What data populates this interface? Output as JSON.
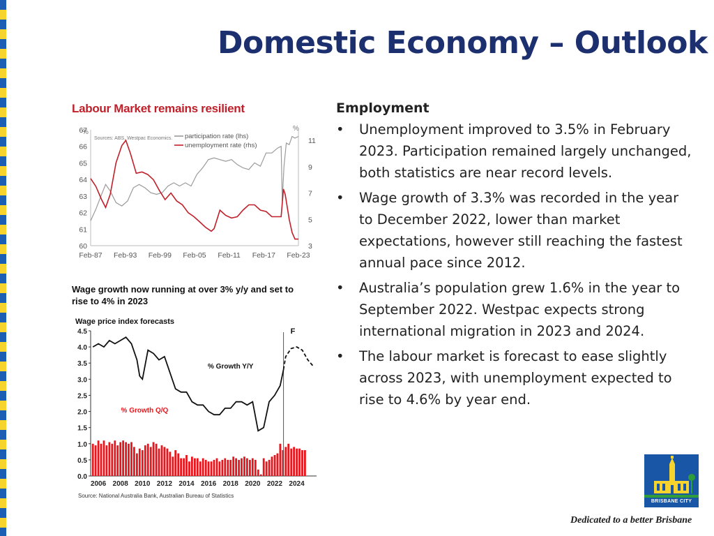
{
  "slide": {
    "title": "Domestic Economy – Outlook",
    "colors": {
      "title": "#1c2f6e",
      "stripe_blue": "#1a5fb4",
      "stripe_yellow": "#f6d32d",
      "chart_red": "#c0202a"
    }
  },
  "text_panel": {
    "heading": "Employment",
    "bullets": [
      {
        "text": "Unemployment improved to 3.5% in February 2023. Participation remained largely unchanged, both statistics are near record levels."
      },
      {
        "text": "Wage growth of 3.3% was recorded in the year to December 2022, lower than market expectations, however still reaching the fastest annual pace since 2012."
      },
      {
        "text": "Australia’s population grew 1.6% in the year to September 2022. Westpac expects strong international migration in 2023 and 2024."
      },
      {
        "text": "The labour market is forecast to ease slightly across 2023, with unemployment expected to rise to 4.6% by year end."
      }
    ],
    "bullet_char": "•"
  },
  "footer": {
    "logo_caption": "BRISBANE CITY",
    "tagline": "Dedicated to a better Brisbane",
    "logo_icon": "city-hall-icon"
  },
  "chart_data": [
    {
      "type": "line",
      "title": "Labour Market remains resilient",
      "source": "Sources: ABS, Westpac Economics.",
      "left_unit": "%",
      "right_unit": "%",
      "yticks_left": [
        "60",
        "61",
        "62",
        "63",
        "64",
        "65",
        "66",
        "67"
      ],
      "yticks_right": [
        "3",
        "5",
        "7",
        "9",
        "11"
      ],
      "ylim_left": [
        60,
        67
      ],
      "ylim_right": [
        3,
        11.8
      ],
      "x_ticks": [
        "Feb-87",
        "Feb-93",
        "Feb-99",
        "Feb-05",
        "Feb-11",
        "Feb-17",
        "Feb-23"
      ],
      "xlim": [
        1987.1,
        2023.1
      ],
      "x_tick_values": [
        1987.1,
        1993.1,
        1999.1,
        2005.1,
        2011.1,
        2017.1,
        2023.1
      ],
      "grid": false,
      "legend": "top",
      "series": [
        {
          "name": "participation rate (lhs)",
          "axis": "left",
          "color": "#9a9a9a",
          "x": [
            1987.1,
            1988,
            1989,
            1989.7,
            1990.5,
            1991.5,
            1992.5,
            1993.5,
            1994.5,
            1995.5,
            1996.5,
            1997.5,
            1998.5,
            1999.5,
            2000.5,
            2001.5,
            2002.5,
            2003.5,
            2004.5,
            2005.5,
            2006.5,
            2007.5,
            2008.5,
            2009.5,
            2010.5,
            2011.5,
            2012.5,
            2013.5,
            2014.5,
            2015.5,
            2016.5,
            2017.5,
            2018.5,
            2019.5,
            2020.1,
            2020.3,
            2020.6,
            2021,
            2021.5,
            2022,
            2022.5,
            2023.1
          ],
          "y": [
            61.5,
            62.2,
            63.1,
            63.7,
            63.3,
            62.6,
            62.4,
            62.7,
            63.5,
            63.7,
            63.5,
            63.2,
            63.1,
            63.2,
            63.6,
            63.8,
            63.6,
            63.8,
            63.6,
            64.3,
            64.7,
            65.2,
            65.3,
            65.2,
            65.1,
            65.2,
            64.9,
            64.7,
            64.6,
            65.0,
            64.8,
            65.6,
            65.6,
            65.9,
            66.0,
            62.7,
            64.8,
            66.2,
            66.1,
            66.6,
            66.5,
            66.6
          ]
        },
        {
          "name": "unemployment rate (rhs)",
          "axis": "right",
          "color": "#c0202a",
          "x": [
            1987.1,
            1988,
            1989,
            1989.7,
            1990.5,
            1991.5,
            1992.5,
            1993.2,
            1994,
            1995,
            1996,
            1997,
            1998,
            1999,
            2000,
            2001,
            2002,
            2003,
            2004,
            2005,
            2006,
            2007,
            2008,
            2008.5,
            2009.5,
            2010.5,
            2011.5,
            2012.5,
            2013.5,
            2014.5,
            2015.5,
            2016.5,
            2017.5,
            2018.5,
            2019.5,
            2020.1,
            2020.5,
            2020.8,
            2021.5,
            2022,
            2022.5,
            2023.1
          ],
          "y": [
            8.1,
            7.5,
            6.5,
            5.9,
            6.9,
            9.3,
            10.6,
            11.0,
            10.0,
            8.5,
            8.6,
            8.4,
            8.0,
            7.2,
            6.5,
            7.0,
            6.4,
            6.1,
            5.5,
            5.2,
            4.8,
            4.4,
            4.1,
            4.3,
            5.7,
            5.3,
            5.1,
            5.2,
            5.7,
            6.1,
            6.1,
            5.7,
            5.6,
            5.2,
            5.2,
            5.2,
            7.3,
            6.9,
            5.0,
            4.0,
            3.5,
            3.5
          ]
        }
      ]
    },
    {
      "type": "bar",
      "title": "Wage growth now running at over 3% y/y and set to rise to 4% in 2023",
      "subtitle": "Wage price index forecasts",
      "source": "Source: National Australia Bank, Australian Bureau of Statistics",
      "forecast_label": "F",
      "forecast_start": 2022.8,
      "ylim": [
        0,
        4.5
      ],
      "yticks": [
        "0.0",
        "0.5",
        "1.0",
        "1.5",
        "2.0",
        "2.5",
        "3.0",
        "3.5",
        "4.0",
        "4.5"
      ],
      "xlim": [
        2005.3,
        2025.8
      ],
      "x_ticks": [
        "2006",
        "2008",
        "2010",
        "2012",
        "2014",
        "2016",
        "2018",
        "2020",
        "2022",
        "2024"
      ],
      "x_tick_values": [
        2006,
        2008,
        2010,
        2012,
        2014,
        2016,
        2018,
        2020,
        2022,
        2024
      ],
      "series": [
        {
          "name": "% Growth Q/Q",
          "type": "bar",
          "color": "#e8161c",
          "start": 2005.5,
          "step": 0.25,
          "values": [
            1.0,
            0.95,
            1.1,
            1.0,
            1.1,
            0.95,
            1.05,
            1.0,
            1.1,
            0.95,
            1.05,
            1.1,
            1.05,
            1.0,
            1.05,
            0.9,
            0.7,
            0.85,
            0.8,
            0.95,
            1.0,
            0.9,
            1.05,
            1.0,
            0.85,
            0.95,
            0.9,
            0.85,
            0.75,
            0.6,
            0.8,
            0.7,
            0.55,
            0.55,
            0.65,
            0.45,
            0.6,
            0.55,
            0.55,
            0.45,
            0.55,
            0.5,
            0.45,
            0.45,
            0.5,
            0.55,
            0.45,
            0.5,
            0.55,
            0.5,
            0.5,
            0.6,
            0.55,
            0.5,
            0.55,
            0.6,
            0.55,
            0.5,
            0.55,
            0.5,
            0.2,
            0.05,
            0.55,
            0.45,
            0.5,
            0.6,
            0.65,
            0.7,
            1.0,
            0.8,
            0.9,
            1.0,
            0.85,
            0.9,
            0.85,
            0.85,
            0.8,
            0.8
          ]
        },
        {
          "name": "% Growth Y/Y",
          "type": "line",
          "color": "#111111",
          "x": [
            2005.5,
            2006,
            2006.5,
            2007,
            2007.5,
            2008,
            2008.5,
            2009,
            2009.5,
            2009.75,
            2010,
            2010.5,
            2011,
            2011.5,
            2012,
            2012.5,
            2013,
            2013.5,
            2014,
            2014.5,
            2015,
            2015.5,
            2016,
            2016.5,
            2017,
            2017.5,
            2018,
            2018.5,
            2019,
            2019.5,
            2020,
            2020.5,
            2021,
            2021.5,
            2022,
            2022.5,
            2022.8
          ],
          "y": [
            4.0,
            4.1,
            4.0,
            4.2,
            4.1,
            4.2,
            4.3,
            4.1,
            3.6,
            3.1,
            3.0,
            3.9,
            3.8,
            3.6,
            3.7,
            3.2,
            2.7,
            2.6,
            2.6,
            2.3,
            2.2,
            2.2,
            2.0,
            1.9,
            1.9,
            2.1,
            2.1,
            2.3,
            2.3,
            2.2,
            2.3,
            1.4,
            1.5,
            2.3,
            2.5,
            2.8,
            3.3
          ]
        },
        {
          "name": "% Growth Y/Y forecast",
          "type": "line",
          "dashed": true,
          "color": "#111111",
          "x": [
            2022.8,
            2023,
            2023.5,
            2024,
            2024.5,
            2025,
            2025.5
          ],
          "y": [
            3.3,
            3.7,
            3.95,
            4.0,
            3.9,
            3.6,
            3.4
          ]
        }
      ]
    }
  ]
}
